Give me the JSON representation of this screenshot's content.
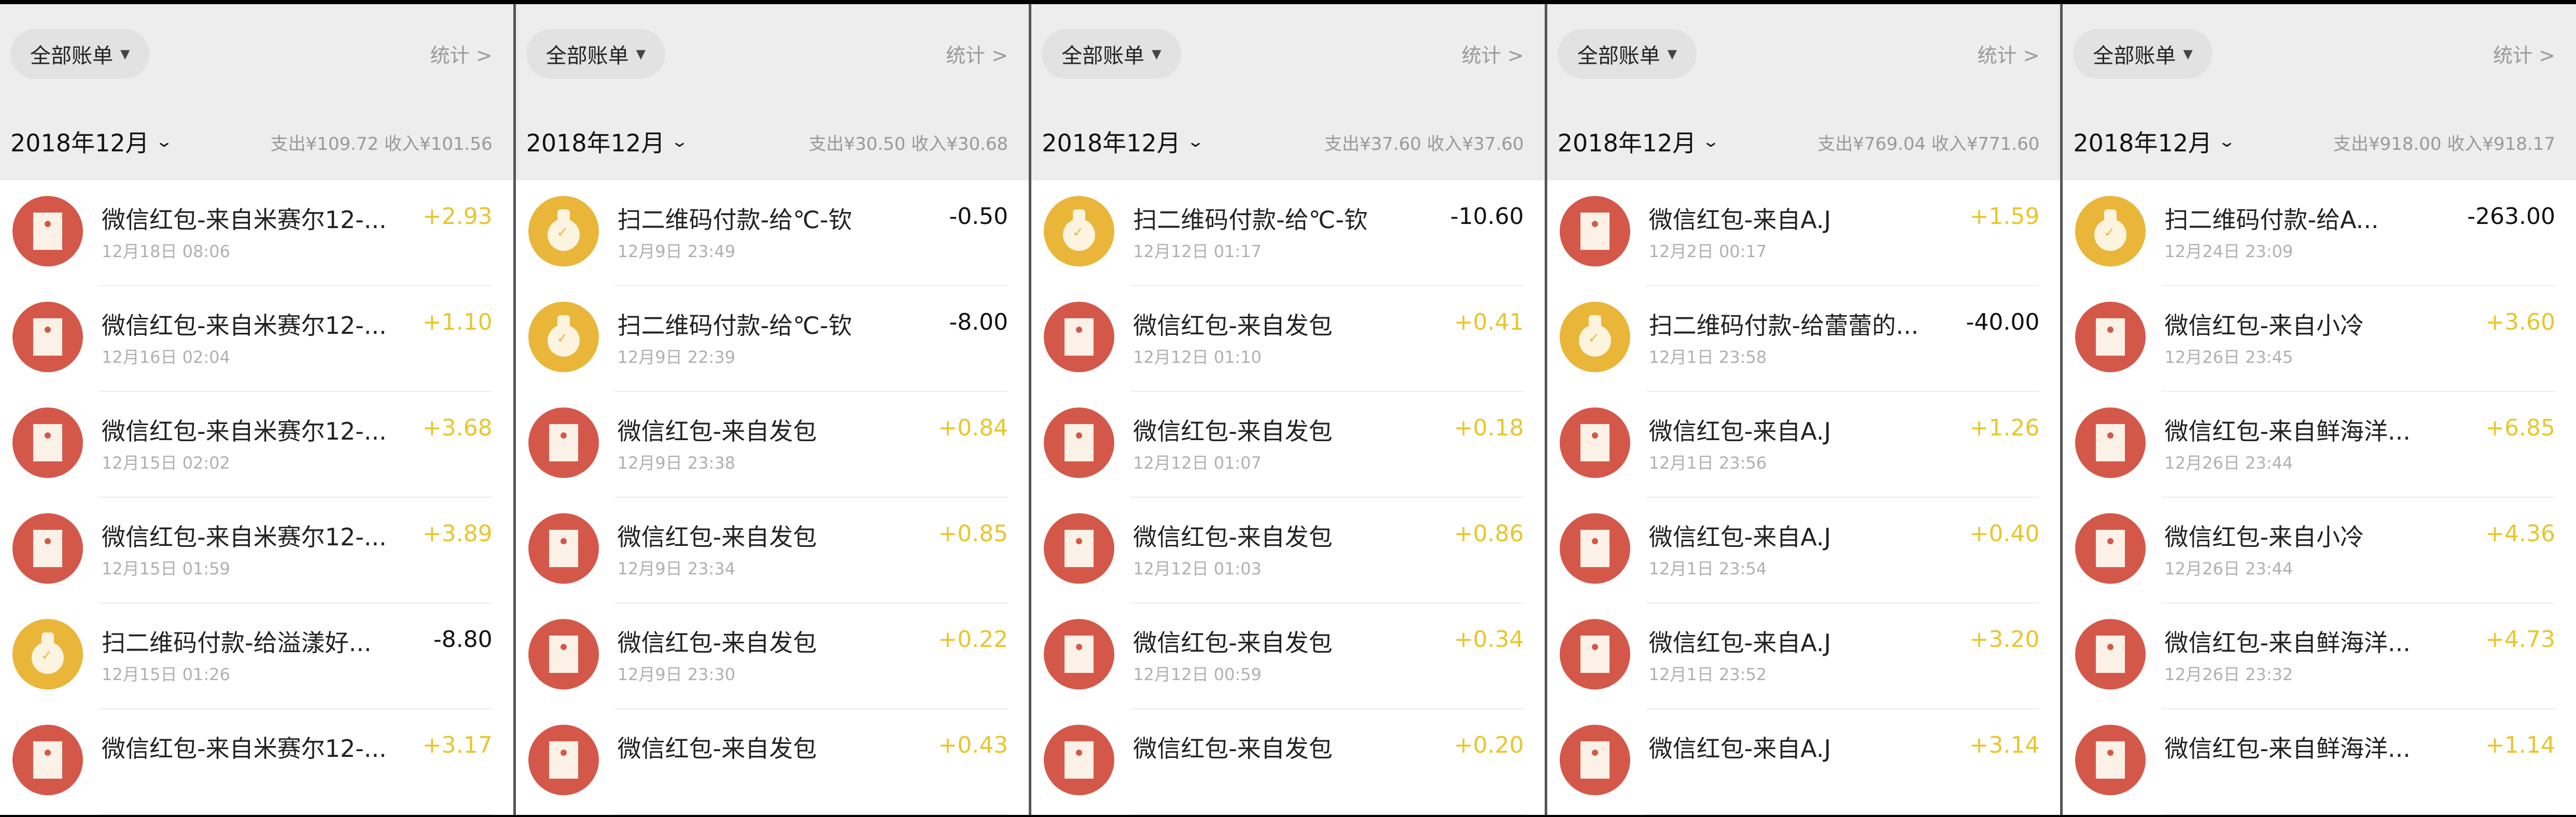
{
  "colors": {
    "red_packet": "#d4584a",
    "payment": "#e9b63a",
    "income": "#e8c62a",
    "expense": "#111111"
  },
  "panels": [
    {
      "filter": "全部账单",
      "stats": "统计 >",
      "month": "2018年12月",
      "summary": "支出¥109.72 收入¥101.56",
      "items": [
        {
          "icon": "red-packet-icon",
          "title": "微信红包-来自米赛尔12-...",
          "time": "12月18日 08:06",
          "amount": "+2.93",
          "type": "in"
        },
        {
          "icon": "red-packet-icon",
          "title": "微信红包-来自米赛尔12-...",
          "time": "12月16日 02:04",
          "amount": "+1.10",
          "type": "in"
        },
        {
          "icon": "red-packet-icon",
          "title": "微信红包-来自米赛尔12-...",
          "time": "12月15日 02:02",
          "amount": "+3.68",
          "type": "in"
        },
        {
          "icon": "red-packet-icon",
          "title": "微信红包-来自米赛尔12-...",
          "time": "12月15日 01:59",
          "amount": "+3.89",
          "type": "in"
        },
        {
          "icon": "money-bag-icon",
          "title": "扫二维码付款-给溢漾好...",
          "time": "12月15日 01:26",
          "amount": "-8.80",
          "type": "out"
        },
        {
          "icon": "red-packet-icon",
          "title": "微信红包-来自米赛尔12-...",
          "time": "",
          "amount": "+3.17",
          "type": "in"
        }
      ]
    },
    {
      "filter": "全部账单",
      "stats": "统计 >",
      "month": "2018年12月",
      "summary": "支出¥30.50 收入¥30.68",
      "items": [
        {
          "icon": "money-bag-icon",
          "title": "扫二维码付款-给℃-钦",
          "time": "12月9日 23:49",
          "amount": "-0.50",
          "type": "out"
        },
        {
          "icon": "money-bag-icon",
          "title": "扫二维码付款-给℃-钦",
          "time": "12月9日 22:39",
          "amount": "-8.00",
          "type": "out"
        },
        {
          "icon": "red-packet-icon",
          "title": "微信红包-来自发包",
          "time": "12月9日 23:38",
          "amount": "+0.84",
          "type": "in"
        },
        {
          "icon": "red-packet-icon",
          "title": "微信红包-来自发包",
          "time": "12月9日 23:34",
          "amount": "+0.85",
          "type": "in"
        },
        {
          "icon": "red-packet-icon",
          "title": "微信红包-来自发包",
          "time": "12月9日 23:30",
          "amount": "+0.22",
          "type": "in"
        },
        {
          "icon": "red-packet-icon",
          "title": "微信红包-来自发包",
          "time": "",
          "amount": "+0.43",
          "type": "in"
        }
      ]
    },
    {
      "filter": "全部账单",
      "stats": "统计 >",
      "month": "2018年12月",
      "summary": "支出¥37.60 收入¥37.60",
      "items": [
        {
          "icon": "money-bag-icon",
          "title": "扫二维码付款-给℃-钦",
          "time": "12月12日 01:17",
          "amount": "-10.60",
          "type": "out"
        },
        {
          "icon": "red-packet-icon",
          "title": "微信红包-来自发包",
          "time": "12月12日 01:10",
          "amount": "+0.41",
          "type": "in"
        },
        {
          "icon": "red-packet-icon",
          "title": "微信红包-来自发包",
          "time": "12月12日 01:07",
          "amount": "+0.18",
          "type": "in"
        },
        {
          "icon": "red-packet-icon",
          "title": "微信红包-来自发包",
          "time": "12月12日 01:03",
          "amount": "+0.86",
          "type": "in"
        },
        {
          "icon": "red-packet-icon",
          "title": "微信红包-来自发包",
          "time": "12月12日 00:59",
          "amount": "+0.34",
          "type": "in"
        },
        {
          "icon": "red-packet-icon",
          "title": "微信红包-来自发包",
          "time": "",
          "amount": "+0.20",
          "type": "in"
        }
      ]
    },
    {
      "filter": "全部账单",
      "stats": "统计 >",
      "month": "2018年12月",
      "summary": "支出¥769.04 收入¥771.60",
      "items": [
        {
          "icon": "red-packet-icon",
          "title": "微信红包-来自A.J",
          "time": "12月2日 00:17",
          "amount": "+1.59",
          "type": "in"
        },
        {
          "icon": "money-bag-icon",
          "title": "扫二维码付款-给蕾蕾的...",
          "time": "12月1日 23:58",
          "amount": "-40.00",
          "type": "out"
        },
        {
          "icon": "red-packet-icon",
          "title": "微信红包-来自A.J",
          "time": "12月1日 23:56",
          "amount": "+1.26",
          "type": "in"
        },
        {
          "icon": "red-packet-icon",
          "title": "微信红包-来自A.J",
          "time": "12月1日 23:54",
          "amount": "+0.40",
          "type": "in"
        },
        {
          "icon": "red-packet-icon",
          "title": "微信红包-来自A.J",
          "time": "12月1日 23:52",
          "amount": "+3.20",
          "type": "in"
        },
        {
          "icon": "red-packet-icon",
          "title": "微信红包-来自A.J",
          "time": "",
          "amount": "+3.14",
          "type": "in"
        }
      ]
    },
    {
      "filter": "全部账单",
      "stats": "统计 >",
      "month": "2018年12月",
      "summary": "支出¥918.00 收入¥918.17",
      "items": [
        {
          "icon": "money-bag-icon",
          "title": "扫二维码付款-给A...",
          "time": "12月24日 23:09",
          "amount": "-263.00",
          "type": "out"
        },
        {
          "icon": "red-packet-icon",
          "title": "微信红包-来自小冷",
          "time": "12月26日 23:45",
          "amount": "+3.60",
          "type": "in"
        },
        {
          "icon": "red-packet-icon",
          "title": "微信红包-来自鲜海洋...",
          "time": "12月26日 23:44",
          "amount": "+6.85",
          "type": "in"
        },
        {
          "icon": "red-packet-icon",
          "title": "微信红包-来自小冷",
          "time": "12月26日 23:44",
          "amount": "+4.36",
          "type": "in"
        },
        {
          "icon": "red-packet-icon",
          "title": "微信红包-来自鲜海洋...",
          "time": "12月26日 23:32",
          "amount": "+4.73",
          "type": "in"
        },
        {
          "icon": "red-packet-icon",
          "title": "微信红包-来自鲜海洋...",
          "time": "",
          "amount": "+1.14",
          "type": "in"
        }
      ]
    }
  ]
}
